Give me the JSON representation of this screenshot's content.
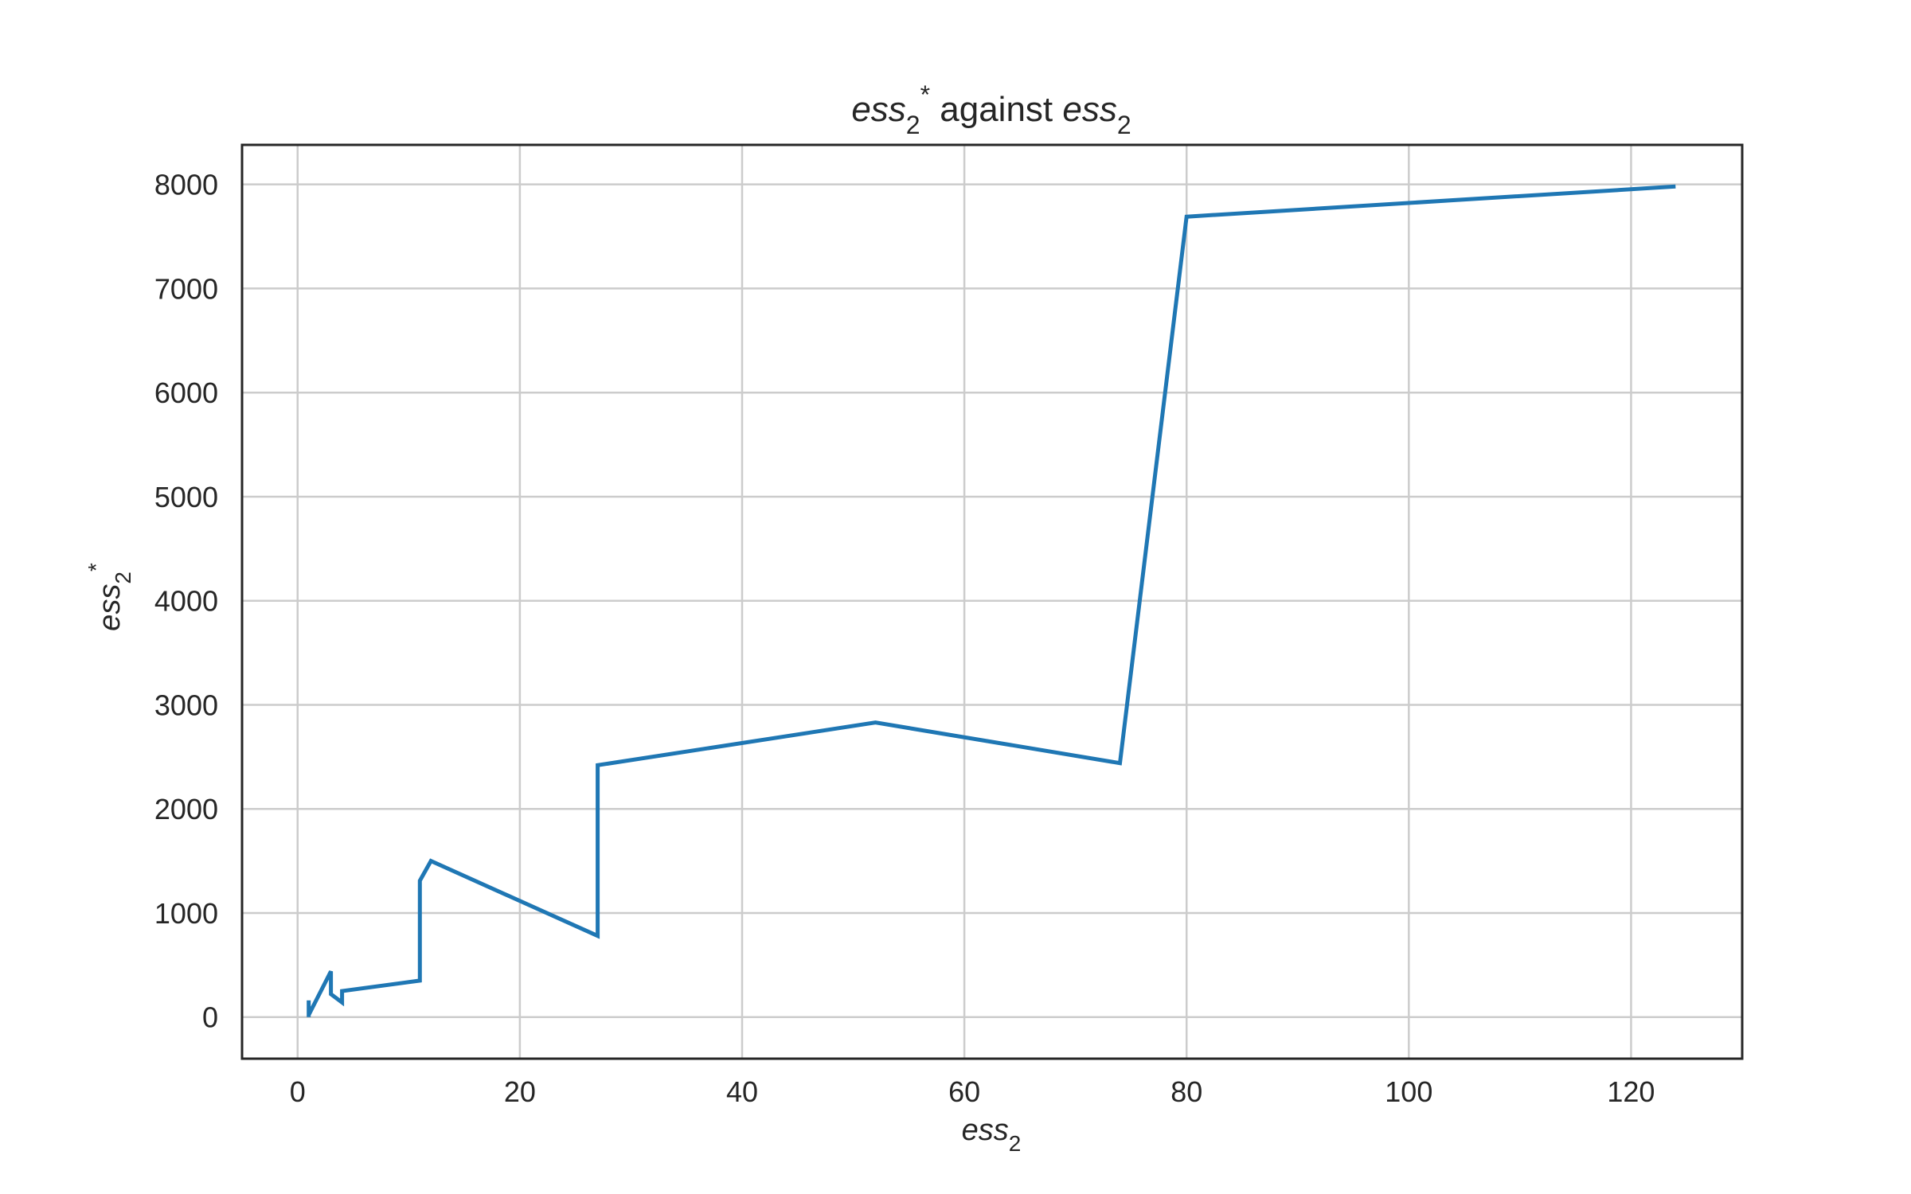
{
  "chart_data": {
    "type": "line",
    "title": {
      "var": "ess",
      "sub": "2",
      "sup": "*",
      "middle": " against ",
      "var2": "ess",
      "sub2": "2"
    },
    "xlabel": {
      "var": "ess",
      "sub": "2"
    },
    "ylabel": {
      "var": "ess",
      "sub": "2",
      "sup": "*"
    },
    "xlim": [
      -5,
      130
    ],
    "ylim": [
      -400,
      8380
    ],
    "xticks": [
      0,
      20,
      40,
      60,
      80,
      100,
      120
    ],
    "yticks": [
      0,
      1000,
      2000,
      3000,
      4000,
      5000,
      6000,
      7000,
      8000
    ],
    "grid": true,
    "series": [
      {
        "color": "#1f77b4",
        "x": [
          1,
          1,
          1,
          3,
          3,
          4,
          4,
          11,
          11,
          12,
          27,
          27,
          52,
          74,
          80,
          124
        ],
        "y": [
          160,
          0,
          20,
          440,
          220,
          140,
          250,
          350,
          1310,
          1500,
          780,
          2420,
          2830,
          2440,
          7690,
          7980
        ]
      }
    ]
  }
}
